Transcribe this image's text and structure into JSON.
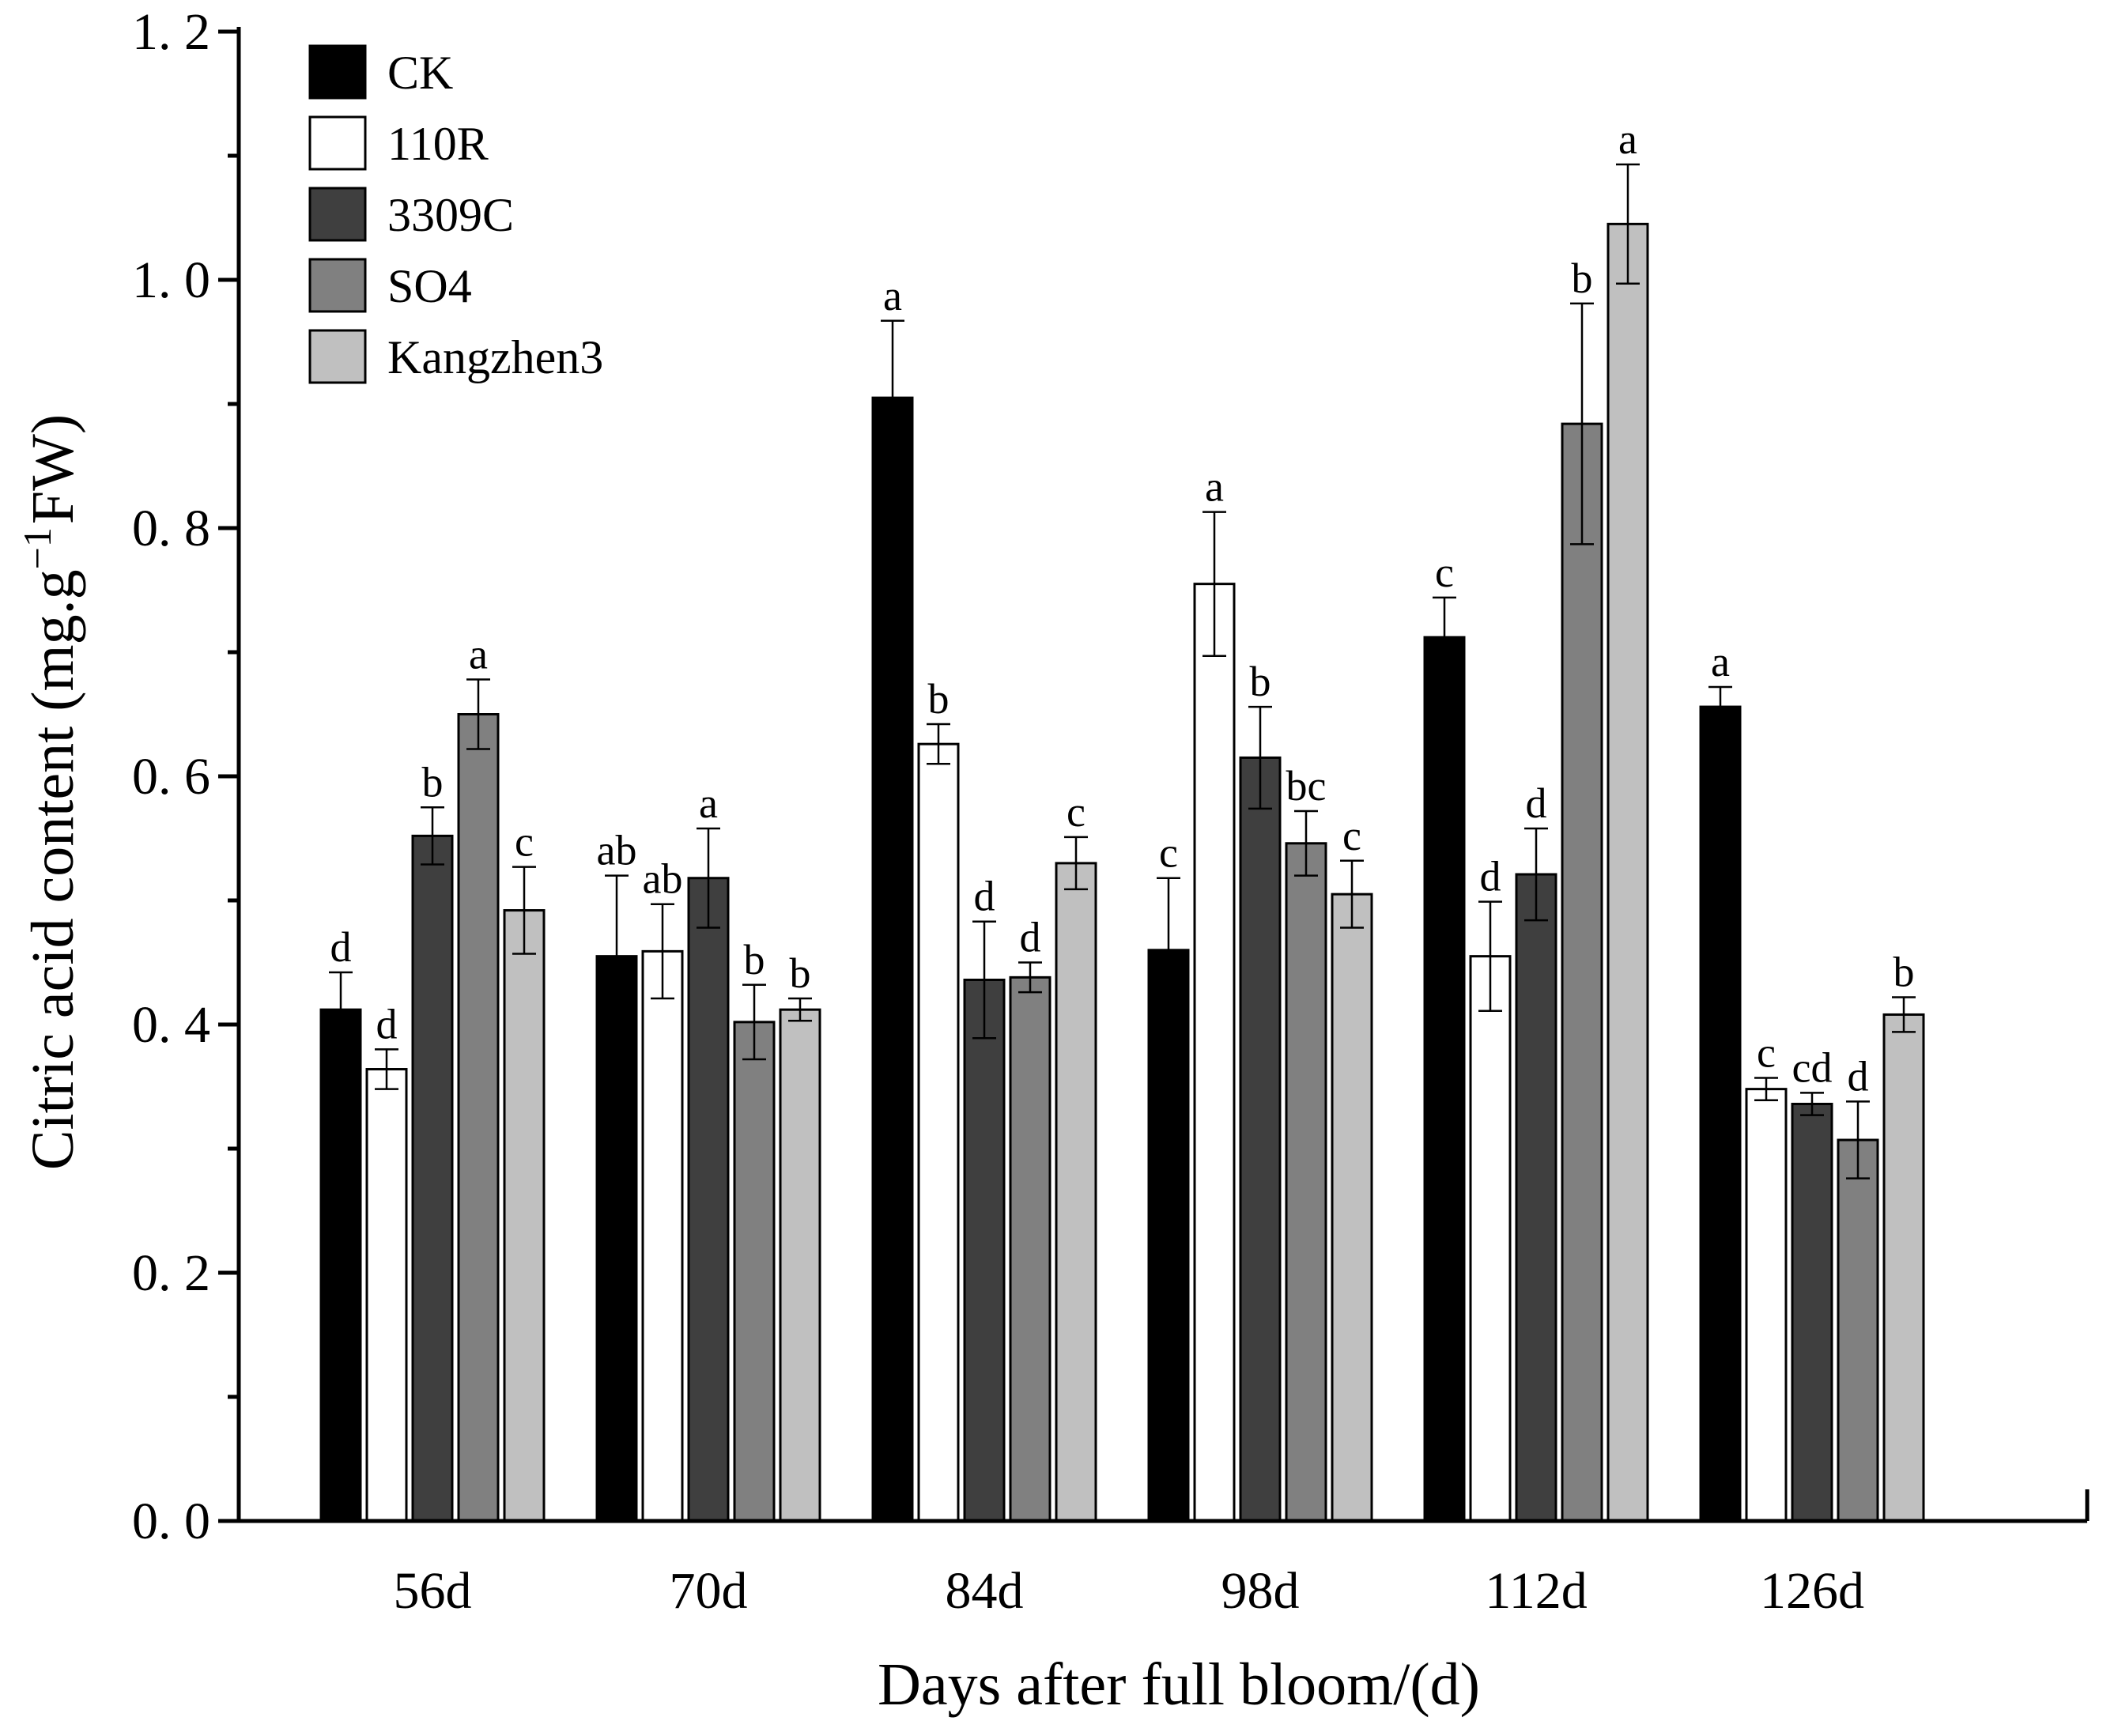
{
  "chart_data": {
    "type": "bar",
    "title": "",
    "xlabel": "Days after full bloom/(d)",
    "ylabel_prefix": "Citric acid content (mg.g",
    "ylabel_superscript": "−1",
    "ylabel_suffix": "FW)",
    "ylim": [
      0,
      1.2
    ],
    "y_ticks": [
      0.0,
      0.2,
      0.4,
      0.6,
      0.8,
      1.0,
      1.2
    ],
    "y_tick_labels": [
      "0. 0",
      "0. 2",
      "0. 4",
      "0. 6",
      "0. 8",
      "1. 0",
      "1. 2"
    ],
    "y_minor_ticks": [
      0.1,
      0.3,
      0.5,
      0.7,
      0.9,
      1.1
    ],
    "categories": [
      "56d",
      "70d",
      "84d",
      "98d",
      "112d",
      "126d"
    ],
    "grid": false,
    "legend_position": "top-left",
    "series": [
      {
        "name": "CK",
        "color": "#000000",
        "values": [
          0.412,
          0.455,
          0.905,
          0.46,
          0.712,
          0.656
        ],
        "errors": [
          0.03,
          0.065,
          0.062,
          0.058,
          0.032,
          0.016
        ],
        "labels": [
          "d",
          "ab",
          "a",
          "c",
          "c",
          "a"
        ]
      },
      {
        "name": "110R",
        "color": "#ffffff",
        "values": [
          0.364,
          0.459,
          0.626,
          0.755,
          0.455,
          0.348
        ],
        "errors": [
          0.016,
          0.038,
          0.016,
          0.058,
          0.044,
          0.009
        ],
        "labels": [
          "d",
          "ab",
          "b",
          "a",
          "d",
          "c"
        ]
      },
      {
        "name": "3309C",
        "color": "#3f3f3f",
        "values": [
          0.552,
          0.518,
          0.436,
          0.615,
          0.521,
          0.336
        ],
        "errors": [
          0.023,
          0.04,
          0.047,
          0.041,
          0.037,
          0.009
        ],
        "labels": [
          "b",
          "a",
          "d",
          "b",
          "d",
          "cd"
        ]
      },
      {
        "name": "SO4",
        "color": "#808080",
        "values": [
          0.65,
          0.402,
          0.438,
          0.546,
          0.884,
          0.307
        ],
        "errors": [
          0.028,
          0.03,
          0.012,
          0.026,
          0.097,
          0.031
        ],
        "labels": [
          "a",
          "b",
          "d",
          "bc",
          "b",
          "d"
        ]
      },
      {
        "name": "Kangzhen3",
        "color": "#c0c0c0",
        "values": [
          0.492,
          0.412,
          0.53,
          0.505,
          1.045,
          0.408
        ],
        "errors": [
          0.035,
          0.009,
          0.021,
          0.027,
          0.048,
          0.014
        ],
        "labels": [
          "c",
          "b",
          "c",
          "c",
          "a",
          "b"
        ]
      }
    ]
  }
}
